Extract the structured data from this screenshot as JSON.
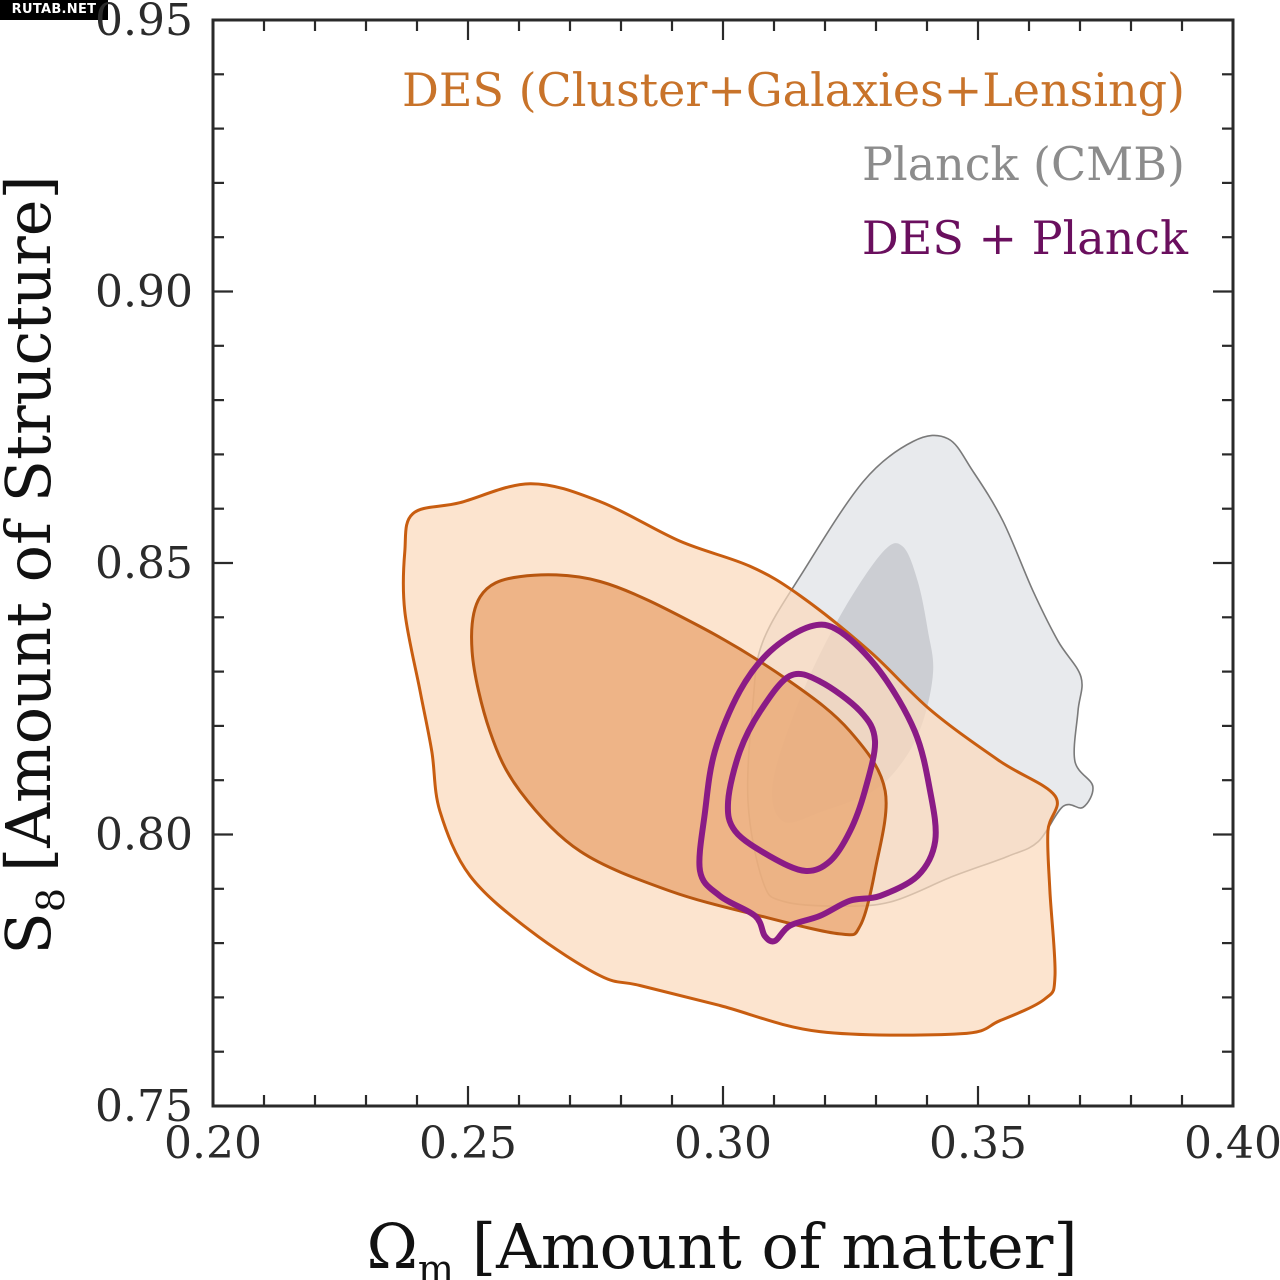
{
  "watermark": "RUTAB.NET",
  "chart_data": {
    "type": "contour",
    "title": "",
    "xlabel_symbol": "Ω",
    "xlabel_sub": "m",
    "xlabel_text": "[Amount of matter]",
    "ylabel_symbol": "S",
    "ylabel_sub": "8",
    "ylabel_text": "[Amount of Structure]",
    "xlim": [
      0.2,
      0.4
    ],
    "ylim": [
      0.75,
      0.95
    ],
    "xticks": [
      0.2,
      0.25,
      0.3,
      0.35,
      0.4
    ],
    "xtick_labels": [
      "0.20",
      "0.25",
      "0.30",
      "0.35",
      "0.40"
    ],
    "xminor_step": 0.01,
    "yticks": [
      0.75,
      0.8,
      0.85,
      0.9,
      0.95
    ],
    "ytick_labels": [
      "0.75",
      "0.80",
      "0.85",
      "0.90",
      "0.95"
    ],
    "yminor_step": 0.01,
    "grid": false,
    "legend_position": "top-right",
    "legend": [
      {
        "label": "DES (Cluster+Galaxies+Lensing)",
        "color": "#c8732a"
      },
      {
        "label": "Planck (CMB)",
        "color": "#8c8c8c"
      },
      {
        "label": "DES + Planck",
        "color": "#6a0f5e"
      }
    ],
    "series": [
      {
        "name": "Planck (CMB) 95%",
        "fill": "#e4e6ea",
        "fill_opacity": 0.85,
        "stroke": "#7a7a7a",
        "stroke_width_class": "thin",
        "points": [
          [
            0.3078,
            0.8355
          ],
          [
            0.3157,
            0.8484
          ],
          [
            0.3275,
            0.865
          ],
          [
            0.3373,
            0.8724
          ],
          [
            0.3441,
            0.8729
          ],
          [
            0.349,
            0.8669
          ],
          [
            0.3549,
            0.8577
          ],
          [
            0.3608,
            0.8448
          ],
          [
            0.3657,
            0.8356
          ],
          [
            0.3702,
            0.829
          ],
          [
            0.3696,
            0.8227
          ],
          [
            0.369,
            0.8135
          ],
          [
            0.3725,
            0.8089
          ],
          [
            0.3706,
            0.805
          ],
          [
            0.3667,
            0.8052
          ],
          [
            0.3618,
            0.7987
          ],
          [
            0.3559,
            0.796
          ],
          [
            0.3451,
            0.7923
          ],
          [
            0.3333,
            0.7877
          ],
          [
            0.3235,
            0.7868
          ],
          [
            0.3118,
            0.7877
          ],
          [
            0.3078,
            0.7914
          ],
          [
            0.3049,
            0.8061
          ],
          [
            0.3059,
            0.8245
          ]
        ]
      },
      {
        "name": "Planck (CMB) 68%",
        "fill": "#c4c7cc",
        "fill_opacity": 0.8,
        "stroke": "none",
        "points": [
          [
            0.3098,
            0.8098
          ],
          [
            0.3157,
            0.8264
          ],
          [
            0.3235,
            0.8411
          ],
          [
            0.3314,
            0.8521
          ],
          [
            0.3353,
            0.853
          ],
          [
            0.3382,
            0.8466
          ],
          [
            0.3402,
            0.8374
          ],
          [
            0.3412,
            0.83
          ],
          [
            0.3392,
            0.8208
          ],
          [
            0.3353,
            0.8135
          ],
          [
            0.3294,
            0.808
          ],
          [
            0.3196,
            0.8043
          ],
          [
            0.3118,
            0.8024
          ]
        ]
      },
      {
        "name": "DES 95%",
        "fill": "#fbd9bd",
        "fill_opacity": 0.72,
        "stroke": "#c85d10",
        "stroke_width_class": "medium",
        "points": [
          [
            0.2392,
            0.8591
          ],
          [
            0.2484,
            0.8611
          ],
          [
            0.2622,
            0.8646
          ],
          [
            0.2759,
            0.8613
          ],
          [
            0.2916,
            0.854
          ],
          [
            0.3053,
            0.8494
          ],
          [
            0.3151,
            0.844
          ],
          [
            0.3288,
            0.8337
          ],
          [
            0.3406,
            0.823
          ],
          [
            0.3543,
            0.8135
          ],
          [
            0.3651,
            0.8071
          ],
          [
            0.3637,
            0.8006
          ],
          [
            0.3641,
            0.7896
          ],
          [
            0.3651,
            0.774
          ],
          [
            0.3631,
            0.7697
          ],
          [
            0.3543,
            0.7657
          ],
          [
            0.3465,
            0.7633
          ],
          [
            0.319,
            0.7637
          ],
          [
            0.2994,
            0.7685
          ],
          [
            0.2837,
            0.7722
          ],
          [
            0.2759,
            0.774
          ],
          [
            0.2622,
            0.7823
          ],
          [
            0.2504,
            0.7924
          ],
          [
            0.2445,
            0.8043
          ],
          [
            0.2429,
            0.8153
          ],
          [
            0.2406,
            0.8264
          ],
          [
            0.2376,
            0.8411
          ],
          [
            0.2376,
            0.8521
          ]
        ]
      },
      {
        "name": "DES 68%",
        "fill": "#e9a672",
        "fill_opacity": 0.78,
        "stroke": "#b8560f",
        "stroke_width_class": "medium",
        "points": [
          [
            0.2524,
            0.8438
          ],
          [
            0.2602,
            0.8475
          ],
          [
            0.2759,
            0.8466
          ],
          [
            0.2955,
            0.8383
          ],
          [
            0.3131,
            0.8282
          ],
          [
            0.3249,
            0.819
          ],
          [
            0.3318,
            0.808
          ],
          [
            0.3298,
            0.7933
          ],
          [
            0.3269,
            0.7832
          ],
          [
            0.3229,
            0.7817
          ],
          [
            0.3073,
            0.785
          ],
          [
            0.2896,
            0.7896
          ],
          [
            0.272,
            0.7969
          ],
          [
            0.2602,
            0.808
          ],
          [
            0.2543,
            0.819
          ],
          [
            0.2508,
            0.8337
          ]
        ]
      },
      {
        "name": "DES + Planck 95%",
        "fill": "none",
        "stroke": "#8a1b86",
        "stroke_width_class": "thick",
        "points": [
          [
            0.3033,
            0.8264
          ],
          [
            0.3092,
            0.8337
          ],
          [
            0.3171,
            0.8383
          ],
          [
            0.3229,
            0.8374
          ],
          [
            0.3308,
            0.83
          ],
          [
            0.3376,
            0.819
          ],
          [
            0.3406,
            0.808
          ],
          [
            0.3416,
            0.7988
          ],
          [
            0.3382,
            0.7924
          ],
          [
            0.3308,
            0.7887
          ],
          [
            0.3249,
            0.7878
          ],
          [
            0.319,
            0.785
          ],
          [
            0.3131,
            0.7832
          ],
          [
            0.3102,
            0.7804
          ],
          [
            0.3082,
            0.7813
          ],
          [
            0.3063,
            0.785
          ],
          [
            0.2994,
            0.7887
          ],
          [
            0.2955,
            0.7933
          ],
          [
            0.2965,
            0.8043
          ],
          [
            0.2984,
            0.8153
          ]
        ]
      },
      {
        "name": "DES + Planck 68%",
        "fill": "none",
        "stroke": "#8a1b86",
        "stroke_width_class": "thick",
        "points": [
          [
            0.3073,
            0.8227
          ],
          [
            0.3131,
            0.8292
          ],
          [
            0.319,
            0.8282
          ],
          [
            0.3269,
            0.8227
          ],
          [
            0.3298,
            0.8172
          ],
          [
            0.3278,
            0.808
          ],
          [
            0.3249,
            0.8006
          ],
          [
            0.321,
            0.7951
          ],
          [
            0.3161,
            0.7933
          ],
          [
            0.3092,
            0.796
          ],
          [
            0.3024,
            0.8006
          ],
          [
            0.301,
            0.8061
          ],
          [
            0.3033,
            0.8153
          ]
        ]
      }
    ]
  }
}
